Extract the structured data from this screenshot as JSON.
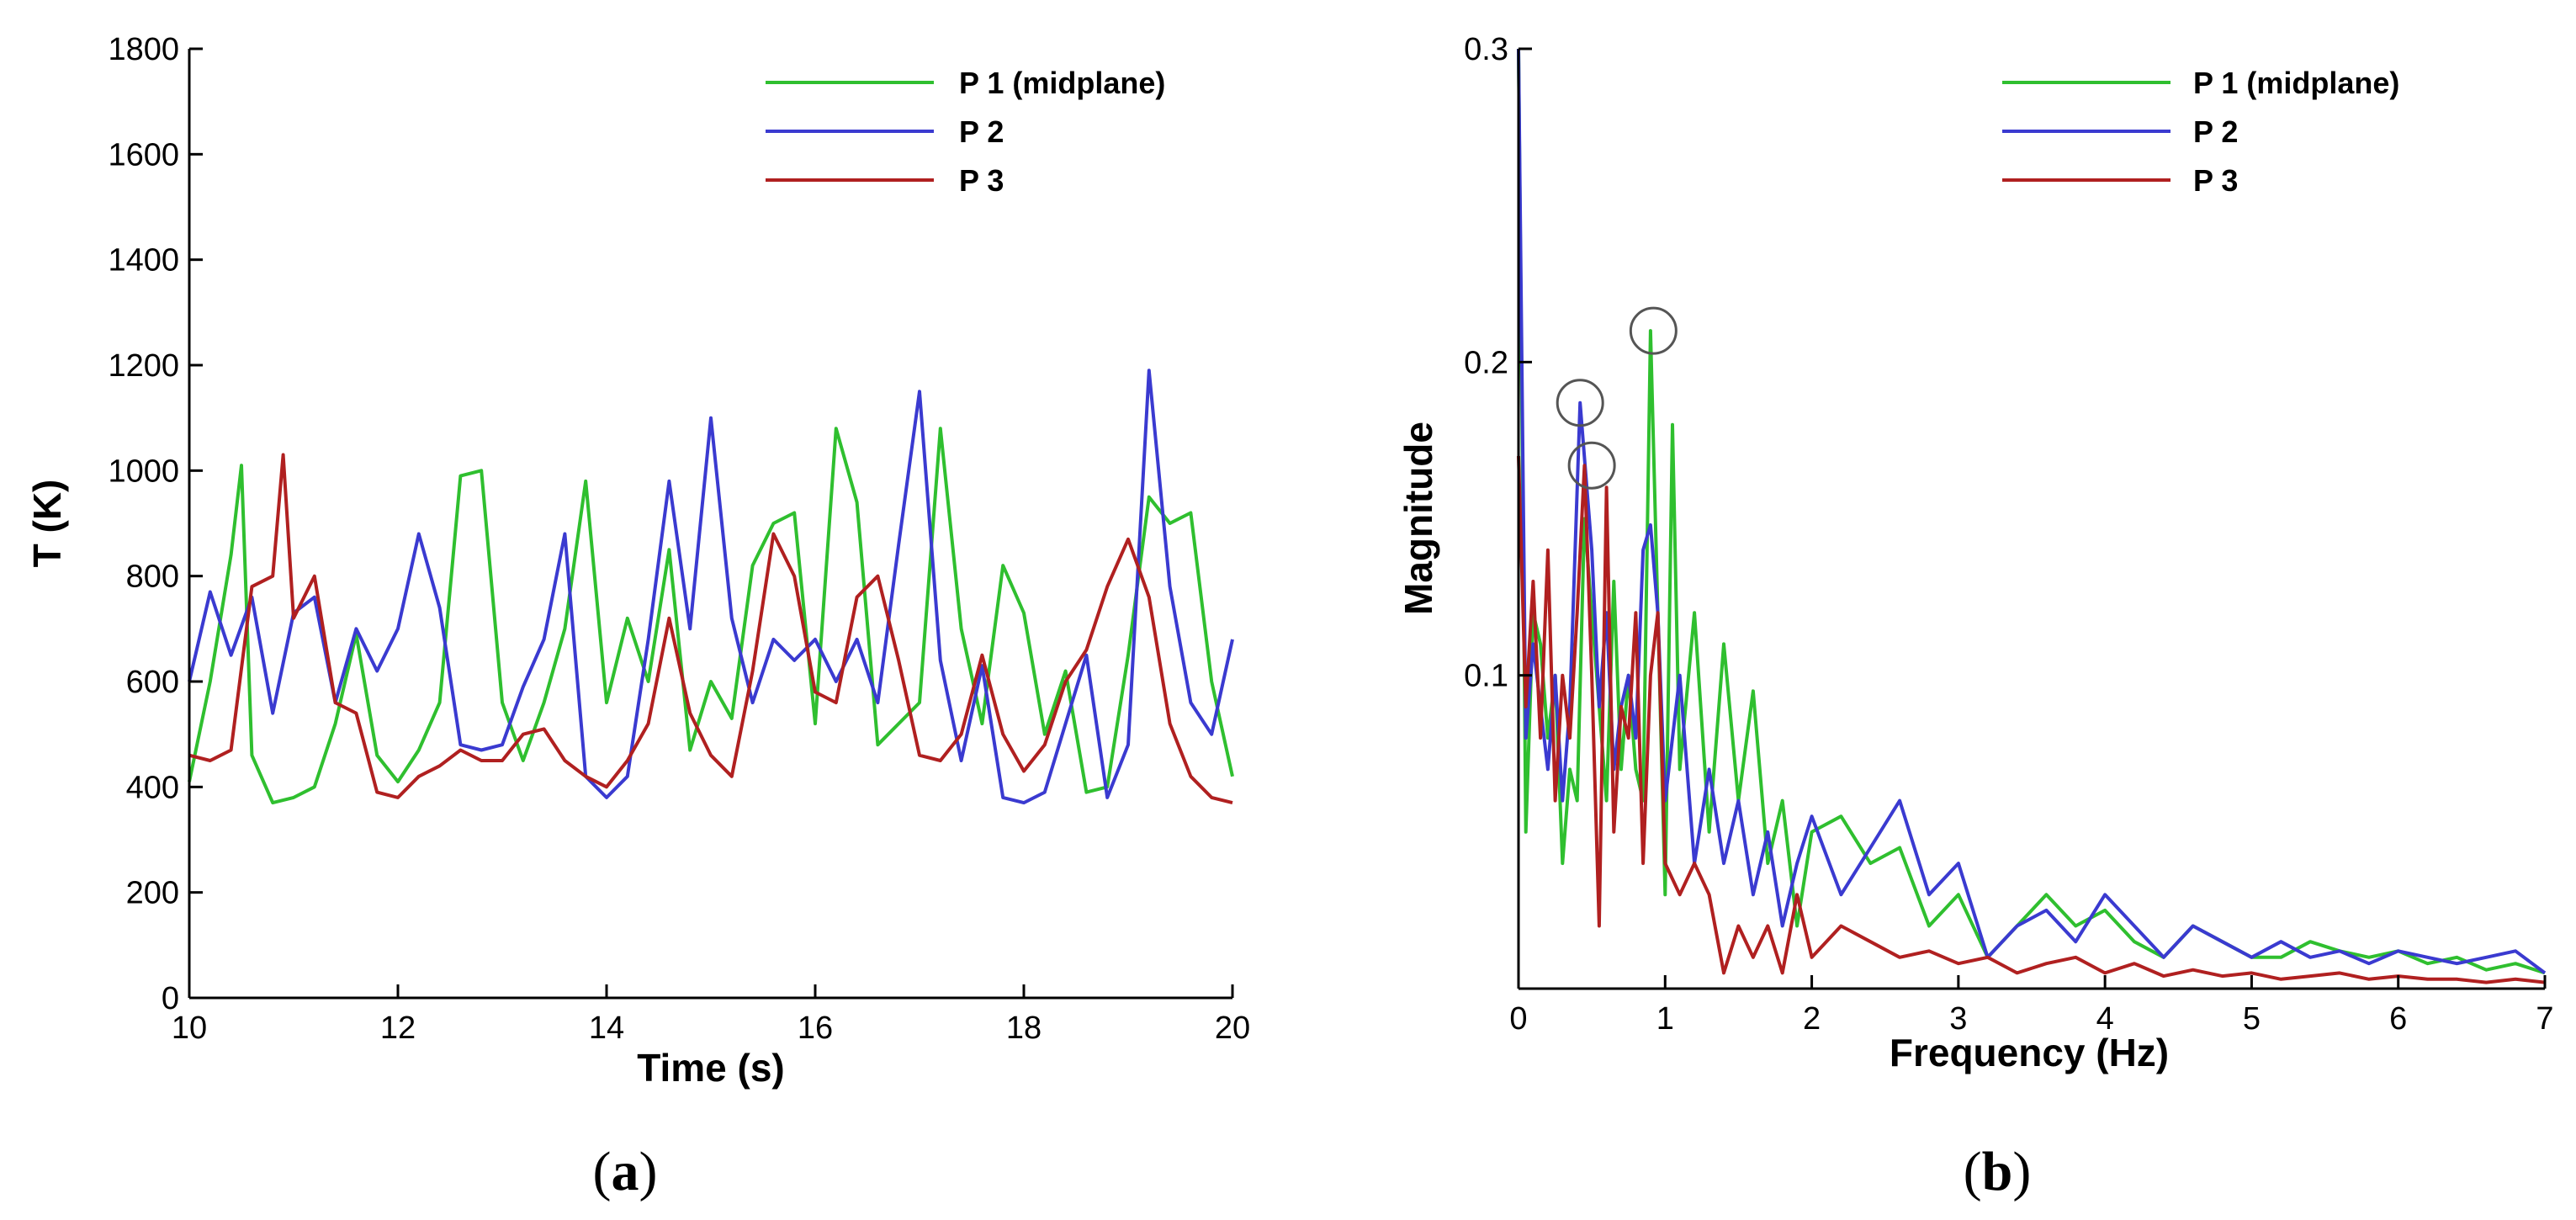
{
  "figure": {
    "captions": [
      "(a)",
      "(b)"
    ]
  },
  "chart_data": [
    {
      "type": "line",
      "panel": "a",
      "caption_letter": "a",
      "title": "",
      "xlabel": "Time (s)",
      "ylabel": "T (K)",
      "xlim": [
        10,
        20
      ],
      "ylim": [
        0,
        1800
      ],
      "xticks": [
        10,
        12,
        14,
        16,
        18,
        20
      ],
      "yticks": [
        0,
        200,
        400,
        600,
        800,
        1000,
        1200,
        1400,
        1600,
        1800
      ],
      "legend_position": "top-right",
      "series": [
        {
          "name": "P 1 (midplane)",
          "color": "#2fbf2f",
          "x": [
            10.0,
            10.2,
            10.4,
            10.5,
            10.6,
            10.8,
            11.0,
            11.2,
            11.4,
            11.6,
            11.8,
            12.0,
            12.2,
            12.4,
            12.6,
            12.8,
            13.0,
            13.2,
            13.4,
            13.6,
            13.8,
            14.0,
            14.2,
            14.4,
            14.6,
            14.8,
            15.0,
            15.2,
            15.4,
            15.6,
            15.8,
            16.0,
            16.2,
            16.4,
            16.6,
            16.8,
            17.0,
            17.2,
            17.4,
            17.6,
            17.8,
            18.0,
            18.2,
            18.4,
            18.6,
            18.8,
            19.0,
            19.2,
            19.4,
            19.6,
            19.8,
            20.0
          ],
          "y": [
            410,
            600,
            840,
            1010,
            460,
            370,
            380,
            400,
            520,
            690,
            460,
            410,
            470,
            560,
            990,
            1000,
            560,
            450,
            560,
            700,
            980,
            560,
            720,
            600,
            850,
            470,
            600,
            530,
            820,
            900,
            920,
            520,
            1080,
            940,
            480,
            520,
            560,
            1080,
            700,
            520,
            820,
            730,
            500,
            620,
            390,
            400,
            650,
            950,
            900,
            920,
            600,
            420
          ]
        },
        {
          "name": "P 2",
          "color": "#3a3ad0",
          "x": [
            10.0,
            10.2,
            10.4,
            10.6,
            10.8,
            11.0,
            11.2,
            11.4,
            11.6,
            11.8,
            12.0,
            12.2,
            12.4,
            12.6,
            12.8,
            13.0,
            13.2,
            13.4,
            13.6,
            13.8,
            14.0,
            14.2,
            14.4,
            14.6,
            14.8,
            15.0,
            15.2,
            15.4,
            15.6,
            15.8,
            16.0,
            16.2,
            16.4,
            16.6,
            16.8,
            17.0,
            17.2,
            17.4,
            17.6,
            17.8,
            18.0,
            18.2,
            18.4,
            18.6,
            18.8,
            19.0,
            19.2,
            19.4,
            19.6,
            19.8,
            20.0
          ],
          "y": [
            600,
            770,
            650,
            760,
            540,
            730,
            760,
            560,
            700,
            620,
            700,
            880,
            740,
            480,
            470,
            480,
            590,
            680,
            880,
            420,
            380,
            420,
            680,
            980,
            700,
            1100,
            720,
            560,
            680,
            640,
            680,
            600,
            680,
            560,
            860,
            1150,
            640,
            450,
            630,
            380,
            370,
            390,
            520,
            650,
            380,
            480,
            1190,
            780,
            560,
            500,
            680
          ]
        },
        {
          "name": "P 3",
          "color": "#b02020",
          "x": [
            10.0,
            10.2,
            10.4,
            10.6,
            10.8,
            10.9,
            11.0,
            11.2,
            11.4,
            11.6,
            11.8,
            12.0,
            12.2,
            12.4,
            12.6,
            12.8,
            13.0,
            13.2,
            13.4,
            13.6,
            13.8,
            14.0,
            14.2,
            14.4,
            14.6,
            14.8,
            15.0,
            15.2,
            15.4,
            15.6,
            15.8,
            16.0,
            16.2,
            16.4,
            16.6,
            16.8,
            17.0,
            17.2,
            17.4,
            17.6,
            17.8,
            18.0,
            18.2,
            18.4,
            18.6,
            18.8,
            19.0,
            19.2,
            19.4,
            19.6,
            19.8,
            20.0
          ],
          "y": [
            460,
            450,
            470,
            780,
            800,
            1030,
            720,
            800,
            560,
            540,
            390,
            380,
            420,
            440,
            470,
            450,
            450,
            500,
            510,
            450,
            420,
            400,
            450,
            520,
            720,
            540,
            460,
            420,
            620,
            880,
            800,
            580,
            560,
            760,
            800,
            640,
            460,
            450,
            500,
            650,
            500,
            430,
            480,
            600,
            660,
            780,
            870,
            760,
            520,
            420,
            380,
            370
          ]
        }
      ]
    },
    {
      "type": "line",
      "panel": "b",
      "caption_letter": "b",
      "title": "",
      "xlabel": "Frequency (Hz)",
      "ylabel": "Magnitude",
      "xlim": [
        0,
        7
      ],
      "ylim": [
        0,
        0.3
      ],
      "xticks": [
        0,
        1,
        2,
        3,
        4,
        5,
        6,
        7
      ],
      "yticks": [
        0.1,
        0.2,
        0.3
      ],
      "legend_position": "top-right",
      "annotations": [
        {
          "type": "circle",
          "x": 0.42,
          "y": 0.187,
          "note": "P 2 peak"
        },
        {
          "type": "circle",
          "x": 0.5,
          "y": 0.167,
          "note": "P 3 peak"
        },
        {
          "type": "circle",
          "x": 0.92,
          "y": 0.21,
          "note": "P 1 peak"
        }
      ],
      "series": [
        {
          "name": "P 1 (midplane)",
          "color": "#2fbf2f",
          "x": [
            0.0,
            0.05,
            0.1,
            0.15,
            0.2,
            0.25,
            0.3,
            0.35,
            0.4,
            0.45,
            0.5,
            0.55,
            0.6,
            0.65,
            0.7,
            0.75,
            0.8,
            0.85,
            0.9,
            0.95,
            1.0,
            1.05,
            1.1,
            1.2,
            1.3,
            1.4,
            1.5,
            1.6,
            1.7,
            1.8,
            1.9,
            2.0,
            2.2,
            2.4,
            2.6,
            2.8,
            3.0,
            3.2,
            3.4,
            3.6,
            3.8,
            4.0,
            4.2,
            4.4,
            4.6,
            4.8,
            5.0,
            5.2,
            5.4,
            5.6,
            5.8,
            6.0,
            6.2,
            6.4,
            6.6,
            6.8,
            7.0
          ],
          "y": [
            0.3,
            0.05,
            0.12,
            0.11,
            0.08,
            0.1,
            0.04,
            0.07,
            0.06,
            0.15,
            0.12,
            0.09,
            0.06,
            0.13,
            0.07,
            0.1,
            0.07,
            0.06,
            0.21,
            0.12,
            0.03,
            0.18,
            0.07,
            0.12,
            0.05,
            0.11,
            0.06,
            0.095,
            0.04,
            0.06,
            0.02,
            0.05,
            0.055,
            0.04,
            0.045,
            0.02,
            0.03,
            0.01,
            0.02,
            0.03,
            0.02,
            0.025,
            0.015,
            0.01,
            0.02,
            0.015,
            0.01,
            0.01,
            0.015,
            0.012,
            0.01,
            0.012,
            0.008,
            0.01,
            0.006,
            0.008,
            0.005
          ]
        },
        {
          "name": "P 2",
          "color": "#3a3ad0",
          "x": [
            0.0,
            0.05,
            0.1,
            0.15,
            0.2,
            0.25,
            0.3,
            0.35,
            0.42,
            0.5,
            0.55,
            0.6,
            0.65,
            0.7,
            0.75,
            0.8,
            0.85,
            0.9,
            0.95,
            1.0,
            1.1,
            1.2,
            1.3,
            1.4,
            1.5,
            1.6,
            1.7,
            1.8,
            1.9,
            2.0,
            2.2,
            2.4,
            2.6,
            2.8,
            3.0,
            3.2,
            3.4,
            3.6,
            3.8,
            4.0,
            4.2,
            4.4,
            4.6,
            4.8,
            5.0,
            5.2,
            5.4,
            5.6,
            5.8,
            6.0,
            6.2,
            6.4,
            6.6,
            6.8,
            7.0
          ],
          "y": [
            0.3,
            0.08,
            0.11,
            0.09,
            0.07,
            0.1,
            0.06,
            0.09,
            0.187,
            0.14,
            0.09,
            0.12,
            0.07,
            0.09,
            0.1,
            0.08,
            0.14,
            0.148,
            0.12,
            0.06,
            0.1,
            0.04,
            0.07,
            0.04,
            0.06,
            0.03,
            0.05,
            0.02,
            0.04,
            0.055,
            0.03,
            0.045,
            0.06,
            0.03,
            0.04,
            0.01,
            0.02,
            0.025,
            0.015,
            0.03,
            0.02,
            0.01,
            0.02,
            0.015,
            0.01,
            0.015,
            0.01,
            0.012,
            0.008,
            0.012,
            0.01,
            0.008,
            0.01,
            0.012,
            0.005
          ]
        },
        {
          "name": "P 3",
          "color": "#b02020",
          "x": [
            0.0,
            0.05,
            0.1,
            0.15,
            0.2,
            0.25,
            0.3,
            0.35,
            0.4,
            0.45,
            0.5,
            0.55,
            0.6,
            0.65,
            0.7,
            0.75,
            0.8,
            0.85,
            0.9,
            0.95,
            1.0,
            1.1,
            1.2,
            1.3,
            1.4,
            1.5,
            1.6,
            1.7,
            1.8,
            1.9,
            2.0,
            2.2,
            2.4,
            2.6,
            2.8,
            3.0,
            3.2,
            3.4,
            3.6,
            3.8,
            4.0,
            4.2,
            4.4,
            4.6,
            4.8,
            5.0,
            5.2,
            5.4,
            5.6,
            5.8,
            6.0,
            6.2,
            6.4,
            6.6,
            6.8,
            7.0
          ],
          "y": [
            0.17,
            0.09,
            0.13,
            0.08,
            0.14,
            0.06,
            0.1,
            0.08,
            0.12,
            0.167,
            0.1,
            0.02,
            0.16,
            0.05,
            0.09,
            0.08,
            0.12,
            0.04,
            0.1,
            0.12,
            0.04,
            0.03,
            0.04,
            0.03,
            0.005,
            0.02,
            0.01,
            0.02,
            0.005,
            0.03,
            0.01,
            0.02,
            0.015,
            0.01,
            0.012,
            0.008,
            0.01,
            0.005,
            0.008,
            0.01,
            0.005,
            0.008,
            0.004,
            0.006,
            0.004,
            0.005,
            0.003,
            0.004,
            0.005,
            0.003,
            0.004,
            0.003,
            0.003,
            0.002,
            0.003,
            0.002
          ]
        }
      ]
    }
  ]
}
